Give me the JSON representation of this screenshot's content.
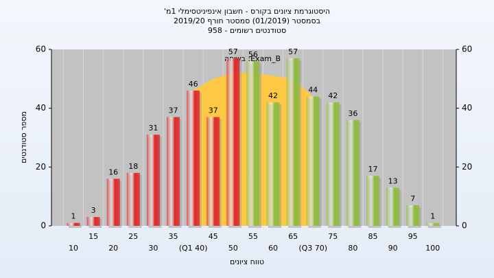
{
  "chart_data": {
    "type": "bar",
    "title": "היסטוגרמת ציונים בקורס - חשבון אינפיניטסימלי 1מ'",
    "subtitle": "בסמסטר (01/2019) סמסטר חורף 2019/20",
    "subtitle2": "סטודנטים רשומים - 958",
    "annotation": "בשיחה :Exam_B",
    "xlabel": "טווח ציונים",
    "ylabel": "מספר סטודנטים",
    "categories": [
      "10",
      "15",
      "20",
      "25",
      "30",
      "35",
      "(Q1 40)",
      "45",
      "50",
      "55",
      "60",
      "65",
      "(Q3 70)",
      "75",
      "80",
      "85",
      "90",
      "95",
      "100"
    ],
    "values": [
      1,
      3,
      16,
      18,
      31,
      37,
      46,
      37,
      57,
      56,
      42,
      57,
      44,
      42,
      36,
      17,
      13,
      7,
      1
    ],
    "colors": [
      "#e02828",
      "#e02828",
      "#e02828",
      "#e02828",
      "#e02828",
      "#e02828",
      "#e02828",
      "#e02828",
      "#e02828",
      "#8fbc3c",
      "#8fbc3c",
      "#8fbc3c",
      "#8fbc3c",
      "#8fbc3c",
      "#8fbc3c",
      "#8fbc3c",
      "#8fbc3c",
      "#8fbc3c",
      "#8fbc3c"
    ],
    "area": {
      "color": "#ffc844",
      "values": [
        null,
        null,
        null,
        null,
        null,
        null,
        46,
        50,
        52,
        52,
        51,
        50,
        44,
        null,
        null,
        null,
        null,
        null,
        null
      ]
    },
    "ylim": [
      0,
      60
    ],
    "yticks": [
      0,
      20,
      40,
      60
    ]
  }
}
